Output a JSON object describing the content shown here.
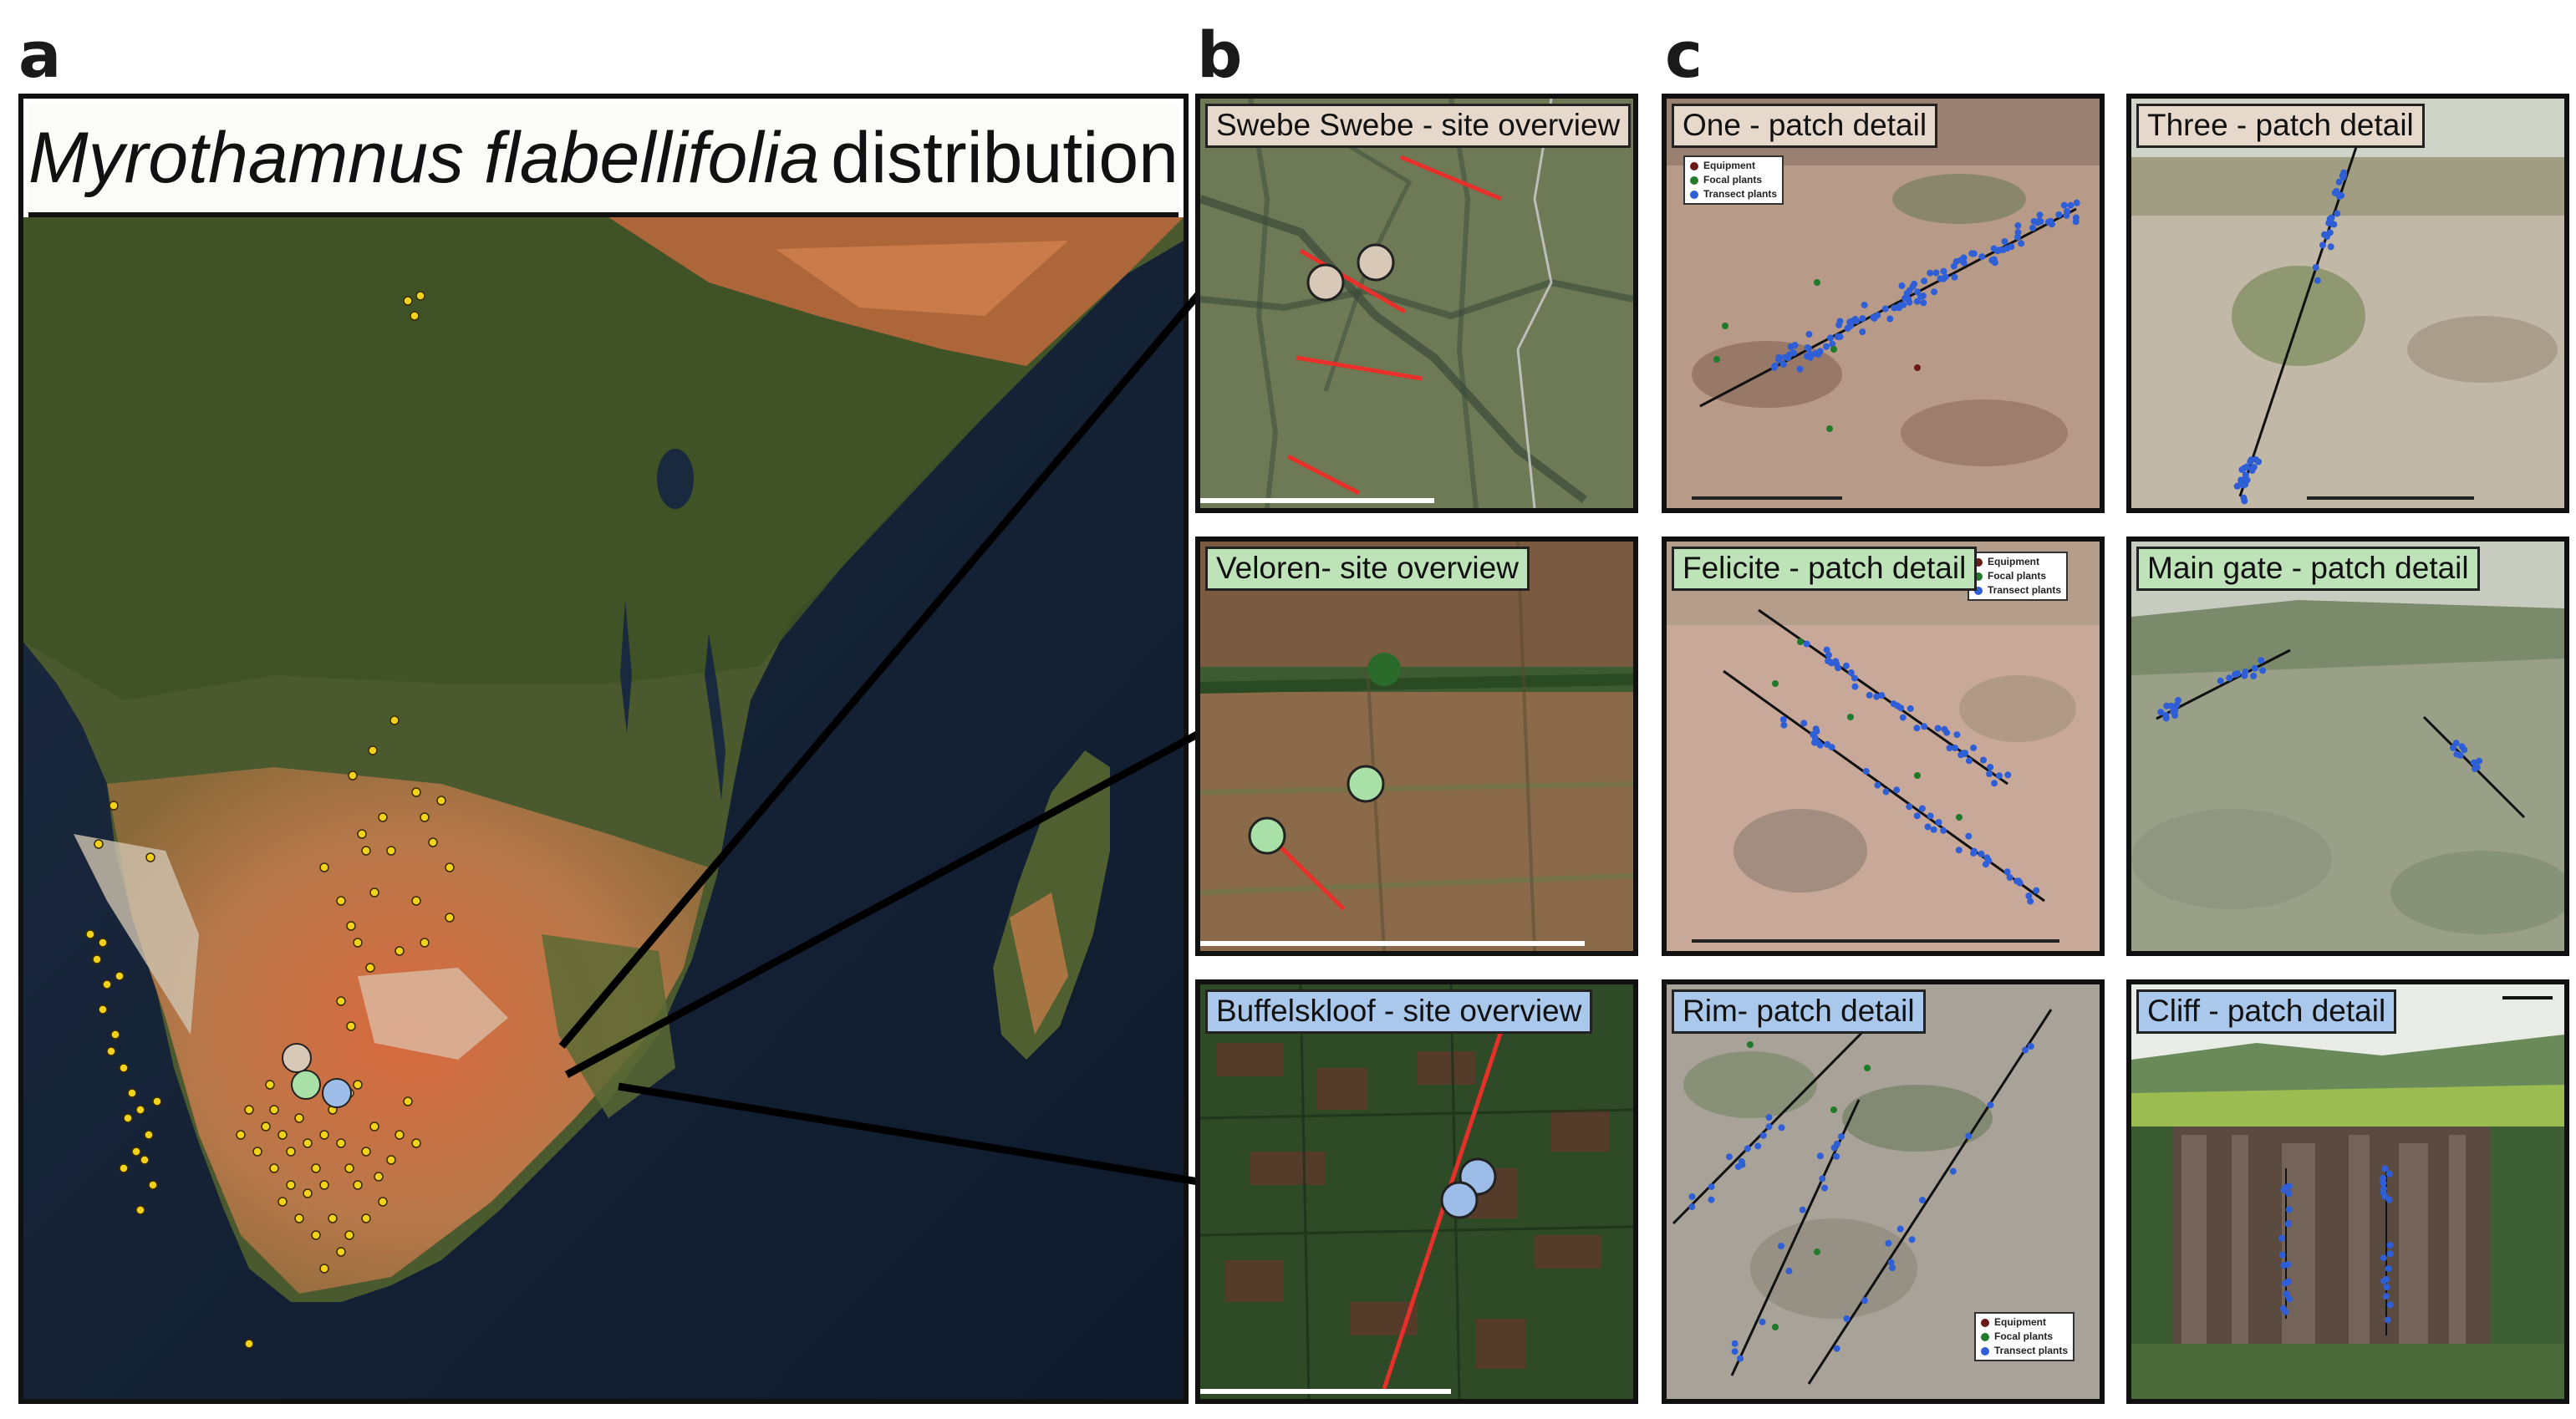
{
  "panels": {
    "a": {
      "letter": "a",
      "title_italic": "Myrothamnus flabellifolia",
      "title_rest": "distribution"
    },
    "b": {
      "letter": "b",
      "sites": [
        {
          "title": "Swebe Swebe - site overview",
          "marker_color": "#d8c8b8"
        },
        {
          "title": "Veloren- site overview",
          "marker_color": "#a8e0a8"
        },
        {
          "title": "Buffelskloof - site overview",
          "marker_color": "#9dbde8"
        }
      ]
    },
    "c": {
      "letter": "c",
      "patches": [
        {
          "title": "One - patch detail",
          "title_color": "#e6d9cc"
        },
        {
          "title": "Three - patch detail",
          "title_color": "#e6d9cc"
        },
        {
          "title": "Felicite - patch detail",
          "title_color": "#bfe3b8"
        },
        {
          "title": "Main gate - patch detail",
          "title_color": "#bfe3b8"
        },
        {
          "title": "Rim- patch detail",
          "title_color": "#a9c8ec"
        },
        {
          "title": "Cliff - patch detail",
          "title_color": "#a9c8ec"
        }
      ],
      "legend": [
        {
          "label": "Equipment",
          "color": "#6b1a1a"
        },
        {
          "label": "Focal plants",
          "color": "#1f7a2a"
        },
        {
          "label": "Transect plants",
          "color": "#2f5fd6"
        }
      ]
    }
  },
  "colors": {
    "occurrence_dot": "#f2d21a",
    "transect_line": "#e8302a",
    "connector": "#000000"
  }
}
